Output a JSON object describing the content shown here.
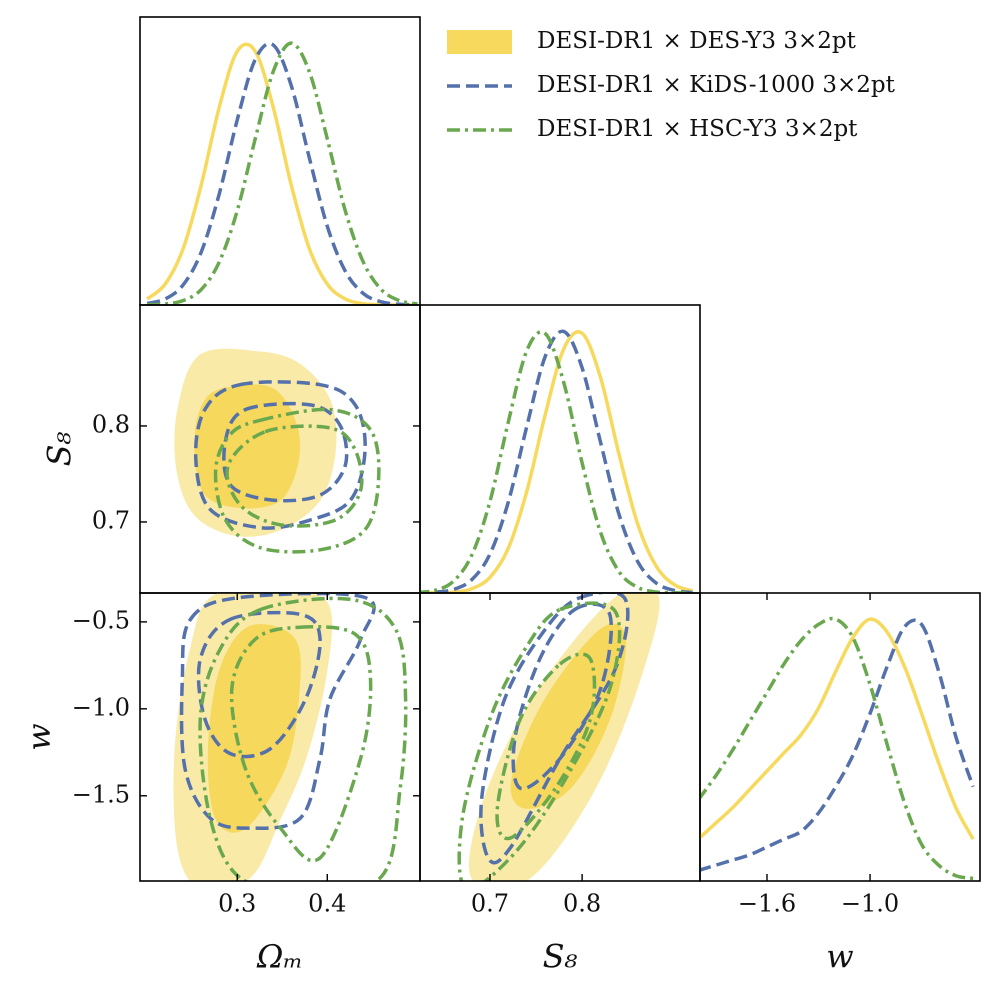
{
  "chart_data": [
    {
      "type": "line",
      "xlim": [
        0.192,
        0.503
      ],
      "ylim": [
        0,
        1.1
      ],
      "x": [
        0.2,
        0.22,
        0.24,
        0.26,
        0.28,
        0.3,
        0.32,
        0.34,
        0.36,
        0.38,
        0.4,
        0.42,
        0.44,
        0.46,
        0.48,
        0.5
      ],
      "series": [
        {
          "name": "DESI-DR1 × DES-Y3 3×2pt",
          "color": "#f7d95e",
          "style": "solid",
          "fill_colors": [
            "#f7d95e"
          ],
          "values": [
            0.023,
            0.08,
            0.216,
            0.458,
            0.755,
            0.969,
            0.969,
            0.755,
            0.458,
            0.216,
            0.08,
            0.023,
            0.005,
            0.001,
            0,
            0
          ]
        },
        {
          "name": "DESI-DR1 × KiDS-1000 3×2pt",
          "color": "#5471ab",
          "style": "dashed",
          "values": [
            0.006,
            0.023,
            0.077,
            0.202,
            0.424,
            0.707,
            0.938,
            0.993,
            0.838,
            0.563,
            0.301,
            0.129,
            0.044,
            0.012,
            0.003,
            0
          ]
        },
        {
          "name": "DESI-DR1 × HSC-Y3 3×2pt",
          "color": "#6aa84f",
          "style": "dashdot",
          "values": [
            0.001,
            0.004,
            0.017,
            0.059,
            0.164,
            0.36,
            0.635,
            0.892,
            1,
            0.892,
            0.635,
            0.36,
            0.164,
            0.059,
            0.017,
            0.004
          ]
        }
      ]
    },
    {
      "type": "contour",
      "xlim": [
        0.192,
        0.503
      ],
      "ylim": [
        0.626,
        0.926
      ],
      "yticks": [
        0.7,
        0.8
      ],
      "ylabel": "S₈",
      "series": [
        {
          "color": "#f7d95e",
          "style": "solid",
          "fill_colors": [
            "#faeaa8",
            "#f6d85c"
          ],
          "levels": [
            {
              "x": [
                0.259,
                0.326,
                0.37,
                0.403,
                0.409,
                0.392,
                0.348,
                0.298,
                0.253,
                0.233,
                0.234
              ],
              "y": [
                0.874,
                0.877,
                0.864,
                0.827,
                0.775,
                0.723,
                0.692,
                0.686,
                0.707,
                0.754,
                0.817
              ]
            },
            {
              "x": [
                0.281,
                0.337,
                0.364,
                0.368,
                0.348,
                0.303,
                0.264,
                0.253,
                0.259
              ],
              "y": [
                0.838,
                0.84,
                0.806,
                0.765,
                0.723,
                0.715,
                0.729,
                0.775,
                0.817
              ]
            }
          ]
        },
        {
          "color": "#5471ab",
          "style": "dashed",
          "levels": [
            {
              "x": [
                0.303,
                0.392,
                0.431,
                0.442,
                0.426,
                0.381,
                0.326,
                0.27,
                0.254,
                0.264
              ],
              "y": [
                0.843,
                0.843,
                0.822,
                0.775,
                0.723,
                0.702,
                0.694,
                0.713,
                0.765,
                0.817
              ]
            },
            {
              "x": [
                0.309,
                0.381,
                0.414,
                0.42,
                0.392,
                0.337,
                0.292,
                0.287
              ],
              "y": [
                0.817,
                0.822,
                0.801,
                0.759,
                0.728,
                0.723,
                0.739,
                0.785
              ]
            }
          ]
        },
        {
          "color": "#6aa84f",
          "style": "dashdot",
          "levels": [
            {
              "x": [
                0.326,
                0.403,
                0.448,
                0.457,
                0.442,
                0.392,
                0.326,
                0.287,
                0.276,
                0.292
              ],
              "y": [
                0.806,
                0.817,
                0.796,
                0.744,
                0.692,
                0.671,
                0.673,
                0.702,
                0.754,
                0.791
              ]
            },
            {
              "x": [
                0.331,
                0.403,
                0.431,
                0.437,
                0.409,
                0.348,
                0.303,
                0.29
              ],
              "y": [
                0.794,
                0.798,
                0.775,
                0.733,
                0.702,
                0.697,
                0.718,
                0.759
              ]
            }
          ]
        }
      ]
    },
    {
      "type": "line",
      "xlim": [
        0.624,
        0.928
      ],
      "ylim": [
        0,
        1.1
      ],
      "x": [
        0.62,
        0.64,
        0.66,
        0.68,
        0.7,
        0.72,
        0.74,
        0.76,
        0.78,
        0.8,
        0.82,
        0.84,
        0.86,
        0.88,
        0.9,
        0.92
      ],
      "series": [
        {
          "color": "#f7d95e",
          "style": "solid",
          "values": [
            0,
            0.001,
            0.003,
            0.016,
            0.06,
            0.172,
            0.389,
            0.682,
            0.932,
            0.992,
            0.823,
            0.531,
            0.267,
            0.105,
            0.032,
            0.008
          ]
        },
        {
          "color": "#5471ab",
          "style": "dashed",
          "values": [
            0,
            0.003,
            0.013,
            0.05,
            0.149,
            0.349,
            0.637,
            0.904,
            0.999,
            0.86,
            0.576,
            0.301,
            0.122,
            0.039,
            0.01,
            0.002
          ]
        },
        {
          "color": "#6aa84f",
          "style": "dashdot",
          "values": [
            0.002,
            0.01,
            0.044,
            0.143,
            0.35,
            0.655,
            0.926,
            0.991,
            0.805,
            0.497,
            0.232,
            0.082,
            0.022,
            0.004,
            0.001,
            0
          ]
        }
      ]
    },
    {
      "type": "contour",
      "xlim": [
        0.192,
        0.503
      ],
      "ylim": [
        -1.99,
        -0.334
      ],
      "xticks": [
        0.3,
        0.4
      ],
      "yticks": [
        {
          "value": -0.5,
          "label": "−0.5"
        },
        {
          "value": -1.0,
          "label": "−1.0"
        },
        {
          "value": -1.5,
          "label": "−1.5"
        }
      ],
      "xlabel": "Ωₘ",
      "ylabel": "w",
      "series": [
        {
          "color": "#f7d95e",
          "style": "solid",
          "fill_colors": [
            "#faeaa8",
            "#f6d85c"
          ],
          "levels": [
            {
              "x": [
                0.276,
                0.37,
                0.403,
                0.398,
                0.376,
                0.348,
                0.314,
                0.259,
                0.234,
                0.231,
                0.248
              ],
              "y": [
                -0.343,
                -0.331,
                -0.429,
                -0.829,
                -1.286,
                -1.629,
                -1.971,
                -2.029,
                -1.8,
                -1.229,
                -0.657
              ]
            },
            {
              "x": [
                0.314,
                0.364,
                0.368,
                0.353,
                0.309,
                0.276,
                0.268,
                0.281
              ],
              "y": [
                -0.526,
                -0.6,
                -0.943,
                -1.343,
                -1.686,
                -1.629,
                -1.229,
                -0.771
              ]
            }
          ]
        },
        {
          "color": "#5471ab",
          "style": "dashed",
          "levels": [
            {
              "x": [
                0.248,
                0.303,
                0.442,
                0.437,
                0.403,
                0.392,
                0.37,
                0.314,
                0.27,
                0.242,
                0.239
              ],
              "y": [
                -0.486,
                -0.36,
                -0.36,
                -0.6,
                -0.943,
                -1.286,
                -1.629,
                -1.686,
                -1.629,
                -1.343,
                -0.829
              ]
            },
            {
              "x": [
                0.292,
                0.37,
                0.392,
                0.376,
                0.337,
                0.292,
                0.264,
                0.259
              ],
              "y": [
                -0.486,
                -0.457,
                -0.6,
                -0.943,
                -1.229,
                -1.257,
                -1.057,
                -0.714
              ]
            }
          ]
        },
        {
          "color": "#6aa84f",
          "style": "dashdot",
          "levels": [
            {
              "x": [
                0.326,
                0.426,
                0.476,
                0.487,
                0.481,
                0.459,
                0.37,
                0.303,
                0.27,
                0.259,
                0.281
              ],
              "y": [
                -0.429,
                -0.371,
                -0.543,
                -0.943,
                -1.457,
                -1.971,
                -2.029,
                -1.971,
                -1.629,
                -1.057,
                -0.657
              ]
            },
            {
              "x": [
                0.37,
                0.431,
                0.448,
                0.437,
                0.392,
                0.348,
                0.309,
                0.294,
                0.32
              ],
              "y": [
                -0.531,
                -0.571,
                -0.829,
                -1.286,
                -1.857,
                -1.686,
                -1.343,
                -0.886,
                -0.6
              ]
            }
          ]
        }
      ]
    },
    {
      "type": "contour",
      "xlim": [
        0.624,
        0.928
      ],
      "ylim": [
        -1.99,
        -0.334
      ],
      "xticks": [
        0.7,
        0.8
      ],
      "xlabel": "S₈",
      "series": [
        {
          "color": "#f7d95e",
          "style": "solid",
          "fill_colors": [
            "#faeaa8",
            "#f6d85c"
          ],
          "levels": [
            {
              "x": [
                0.841,
                0.883,
                0.863,
                0.82,
                0.765,
                0.722,
                0.68,
                0.687,
                0.722,
                0.776
              ],
              "y": [
                -0.343,
                -0.36,
                -0.829,
                -1.4,
                -1.857,
                -2.029,
                -1.971,
                -1.629,
                -1.171,
                -0.714
              ]
            },
            {
              "x": [
                0.82,
                0.847,
                0.83,
                0.787,
                0.738,
                0.724,
                0.76
              ],
              "y": [
                -0.543,
                -0.6,
                -1.057,
                -1.457,
                -1.571,
                -1.4,
                -0.943
              ]
            }
          ]
        },
        {
          "color": "#5471ab",
          "style": "dashed",
          "levels": [
            {
              "x": [
                0.798,
                0.847,
                0.836,
                0.776,
                0.722,
                0.698,
                0.691,
                0.716,
                0.76
              ],
              "y": [
                -0.36,
                -0.371,
                -0.771,
                -1.286,
                -1.8,
                -1.857,
                -1.514,
                -0.943,
                -0.543
              ]
            },
            {
              "x": [
                0.792,
                0.83,
                0.82,
                0.776,
                0.733,
                0.727,
                0.754
              ],
              "y": [
                -0.429,
                -0.457,
                -0.886,
                -1.286,
                -1.457,
                -1.171,
                -0.714
              ]
            }
          ]
        },
        {
          "color": "#6aa84f",
          "style": "dashdot",
          "levels": [
            {
              "x": [
                0.776,
                0.836,
                0.83,
                0.776,
                0.722,
                0.673,
                0.67,
                0.7,
                0.738
              ],
              "y": [
                -0.429,
                -0.44,
                -0.886,
                -1.457,
                -1.857,
                -2.029,
                -1.629,
                -1.057,
                -0.657
              ]
            },
            {
              "x": [
                0.776,
                0.809,
                0.809,
                0.771,
                0.722,
                0.708,
                0.733
              ],
              "y": [
                -0.743,
                -0.714,
                -1.057,
                -1.457,
                -1.743,
                -1.571,
                -1.057
              ]
            }
          ]
        }
      ]
    },
    {
      "type": "line",
      "xlim": [
        -1.99,
        -0.36
      ],
      "ylim": [
        0,
        1.1
      ],
      "xticks": [
        {
          "value": -1.6,
          "label": "−1.6"
        },
        {
          "value": -1.0,
          "label": "−1.0"
        }
      ],
      "xlabel": "w",
      "x": [
        -2.0,
        -1.9,
        -1.8,
        -1.7,
        -1.6,
        -1.5,
        -1.4,
        -1.3,
        -1.2,
        -1.1,
        -1.0,
        -0.9,
        -0.8,
        -0.7,
        -0.6,
        -0.5,
        -0.4
      ],
      "series": [
        {
          "color": "#f7d95e",
          "style": "solid",
          "values": [
            0.16,
            0.22,
            0.28,
            0.35,
            0.42,
            0.49,
            0.56,
            0.66,
            0.8,
            0.93,
            1.0,
            0.95,
            0.82,
            0.64,
            0.45,
            0.28,
            0.16
          ]
        },
        {
          "color": "#5471ab",
          "style": "dashed",
          "values": [
            0.04,
            0.06,
            0.08,
            0.1,
            0.13,
            0.16,
            0.19,
            0.26,
            0.36,
            0.48,
            0.64,
            0.82,
            0.97,
            0.98,
            0.8,
            0.55,
            0.36
          ]
        },
        {
          "color": "#6aa84f",
          "style": "dashdot",
          "values": [
            0.31,
            0.4,
            0.5,
            0.61,
            0.72,
            0.83,
            0.92,
            0.98,
            1.0,
            0.93,
            0.75,
            0.52,
            0.3,
            0.14,
            0.06,
            0.02,
            0.01
          ]
        }
      ]
    }
  ]
}
